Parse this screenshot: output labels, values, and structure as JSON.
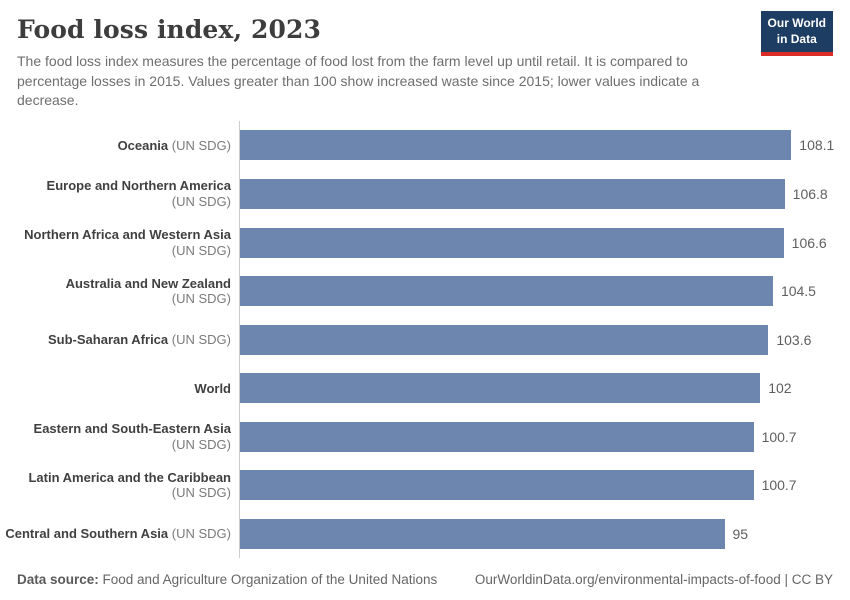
{
  "header": {
    "title": "Food loss index, 2023",
    "subtitle": "The food loss index measures the percentage of food lost from the farm level up until retail. It is compared to percentage losses in 2015. Values greater than 100 show increased waste since 2015; lower values indicate a decrease."
  },
  "logo": {
    "line1": "Our World",
    "line2": "in Data",
    "bg_color": "#1d3d63",
    "accent_color": "#dc2c27"
  },
  "chart_data": {
    "type": "bar",
    "orientation": "horizontal",
    "title": "Food loss index, 2023",
    "xlabel": "",
    "ylabel": "",
    "xlim": [
      0,
      110
    ],
    "grid": false,
    "legend": "none",
    "bar_color": "#6d86af",
    "axis_line_color": "#cccccc",
    "rows": [
      {
        "entity": "Oceania",
        "qualifier": "(UN SDG)",
        "value": 108.1,
        "value_label": "108.1"
      },
      {
        "entity": "Europe and Northern America",
        "qualifier": "(UN SDG)",
        "value": 106.8,
        "value_label": "106.8"
      },
      {
        "entity": "Northern Africa and Western Asia",
        "qualifier": "(UN SDG)",
        "value": 106.6,
        "value_label": "106.6"
      },
      {
        "entity": "Australia and New Zealand",
        "qualifier": "(UN SDG)",
        "value": 104.5,
        "value_label": "104.5"
      },
      {
        "entity": "Sub-Saharan Africa",
        "qualifier": "(UN SDG)",
        "value": 103.6,
        "value_label": "103.6"
      },
      {
        "entity": "World",
        "qualifier": "",
        "value": 102,
        "value_label": "102"
      },
      {
        "entity": "Eastern and South-Eastern Asia",
        "qualifier": "(UN SDG)",
        "value": 100.7,
        "value_label": "100.7"
      },
      {
        "entity": "Latin America and the Caribbean",
        "qualifier": "(UN SDG)",
        "value": 100.7,
        "value_label": "100.7"
      },
      {
        "entity": "Central and Southern Asia",
        "qualifier": "(UN SDG)",
        "value": 95,
        "value_label": "95"
      }
    ]
  },
  "footer": {
    "datasource_label": "Data source:",
    "datasource_value": " Food and Agriculture Organization of the United Nations",
    "link_text": "OurWorldinData.org/environmental-impacts-of-food",
    "license_text": " | CC BY"
  }
}
